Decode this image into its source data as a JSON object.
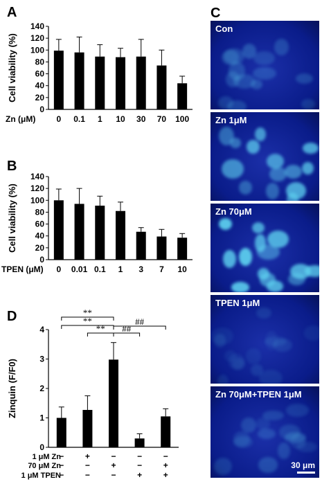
{
  "chart_data": [
    {
      "panel": "A",
      "type": "bar",
      "categories": [
        "0",
        "0.1",
        "1",
        "10",
        "30",
        "70",
        "100"
      ],
      "values": [
        99,
        96,
        89,
        88,
        89,
        74,
        44
      ],
      "errors": [
        19,
        26,
        20,
        15,
        29,
        26,
        12
      ],
      "xlabel": "Zn (μM)",
      "ylabel": "Cell viability (%)",
      "ylim": [
        0,
        140
      ],
      "yticks": [
        "0",
        "20",
        "40",
        "60",
        "80",
        "100",
        "120",
        "140"
      ]
    },
    {
      "panel": "B",
      "type": "bar",
      "categories": [
        "0",
        "0.01",
        "0.1",
        "1",
        "3",
        "7",
        "10"
      ],
      "values": [
        100,
        94,
        91,
        82,
        47,
        39,
        37
      ],
      "errors": [
        19,
        26,
        16,
        15,
        7,
        12,
        7
      ],
      "xlabel": "TPEN (μM)",
      "ylabel": "Cell viability (%)",
      "ylim": [
        0,
        140
      ],
      "yticks": [
        "0",
        "20",
        "40",
        "60",
        "80",
        "100",
        "120",
        "140"
      ]
    },
    {
      "panel": "D",
      "type": "bar",
      "values": [
        1.0,
        1.27,
        2.98,
        0.3,
        1.05
      ],
      "errors": [
        0.37,
        0.48,
        0.58,
        0.16,
        0.26
      ],
      "ylabel": "Zinquin (F/F0)",
      "ylim": [
        0,
        4
      ],
      "yticks": [
        "0",
        "1",
        "2",
        "3",
        "4"
      ],
      "conditions": [
        {
          "label": "1 μM Zn",
          "marks": [
            "−",
            "+",
            "−",
            "−",
            "−"
          ]
        },
        {
          "label": "70 μM Zn",
          "marks": [
            "−",
            "−",
            "+",
            "−",
            "+"
          ]
        },
        {
          "label": "1 μM TPEN",
          "marks": [
            "−",
            "−",
            "−",
            "+",
            "+"
          ]
        }
      ],
      "significance": [
        {
          "from": 0,
          "to": 2,
          "text": "**"
        },
        {
          "from": 0,
          "to": 2,
          "text": "**"
        },
        {
          "from": 1,
          "to": 2,
          "text": "**"
        },
        {
          "from": 2,
          "to": 4,
          "text": "##"
        },
        {
          "from": 2,
          "to": 3,
          "text": "##"
        }
      ]
    }
  ],
  "panel_letters": {
    "A": "A",
    "B": "B",
    "C": "C",
    "D": "D"
  },
  "images": {
    "panels": [
      "Con",
      "Zn 1μM",
      "Zn 70μM",
      "TPEN 1μM",
      "Zn 70μM+TPEN 1μM"
    ],
    "scale_bar": "30 μm"
  },
  "colors": {
    "bar": "#000000",
    "fluor_bg": "#0a1c8a",
    "fluor_cell": "#5fd3f0"
  }
}
